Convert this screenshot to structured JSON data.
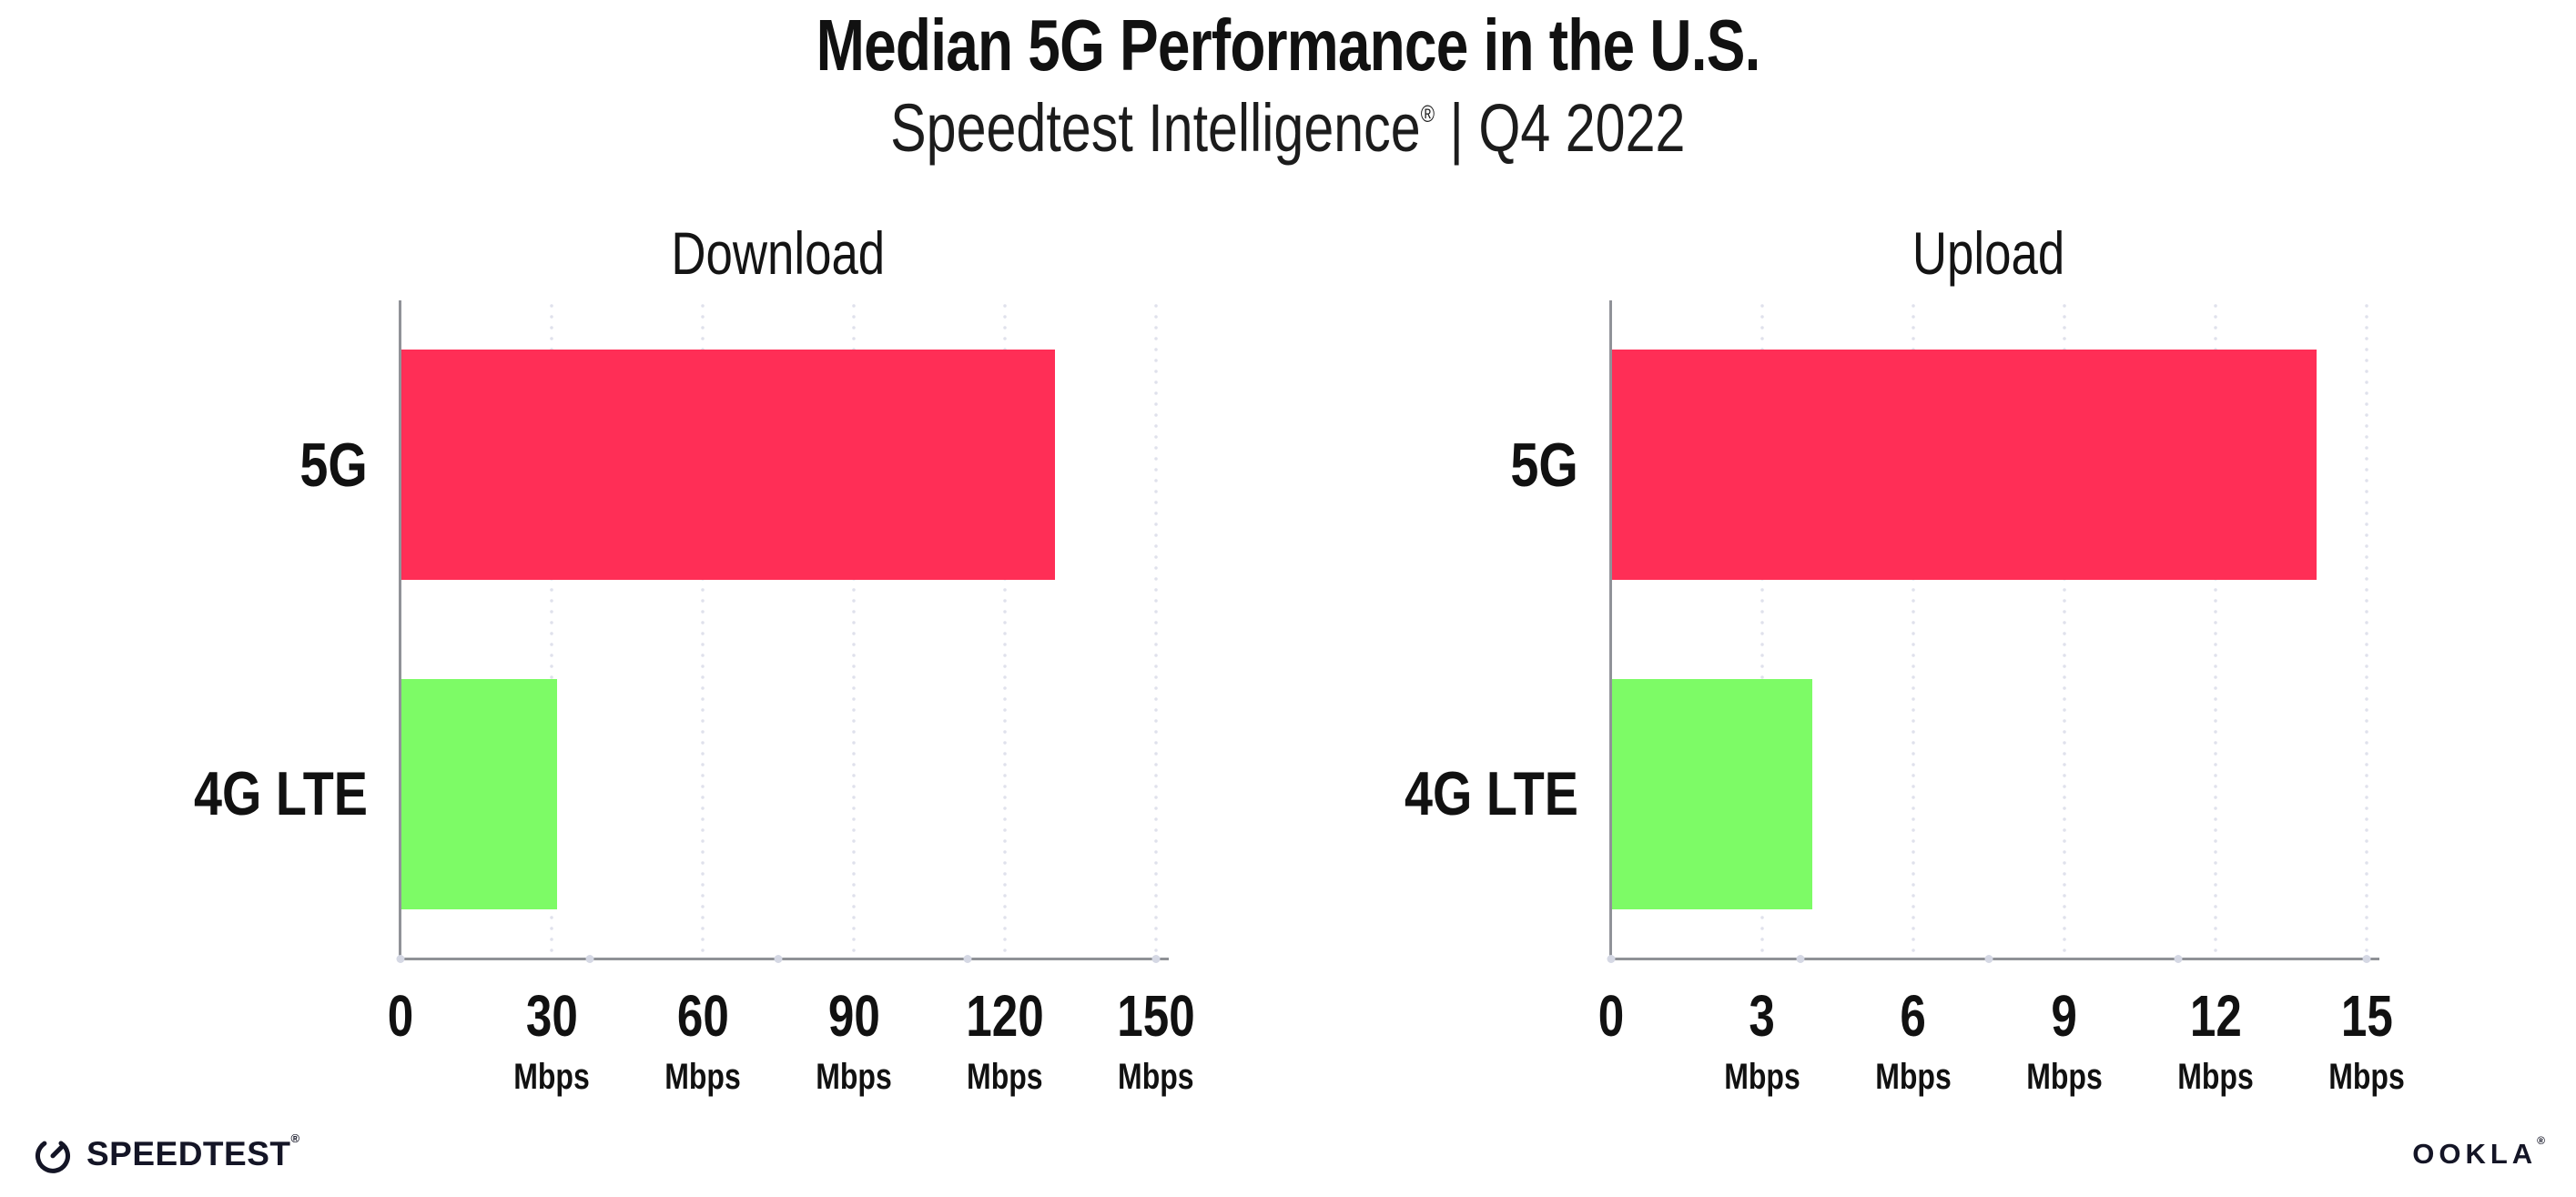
{
  "header": {
    "title": "Median 5G Performance in the U.S.",
    "subtitle_brand": "Speedtest Intelligence",
    "subtitle_reg": "®",
    "subtitle_rest": " | Q4 2022"
  },
  "colors": {
    "bar_5g": "#ff2e56",
    "bar_4g_lte": "#7dfb66",
    "axis_line": "#8f9196",
    "gridline_dot": "#dfe1ec",
    "text": "#111111",
    "logo_ink": "#141526"
  },
  "chart_data": [
    {
      "type": "bar",
      "orientation": "horizontal",
      "title": "Download",
      "categories": [
        "5G",
        "4G LTE"
      ],
      "values": [
        130,
        31
      ],
      "bar_colors": [
        "#ff2e56",
        "#7dfb66"
      ],
      "unit": "Mbps",
      "xlabel": "",
      "ylabel": "",
      "xlim": [
        0,
        150
      ],
      "xticks": [
        0,
        30,
        60,
        90,
        120,
        150
      ],
      "grid": "vertical-dotted",
      "legend": "none"
    },
    {
      "type": "bar",
      "orientation": "horizontal",
      "title": "Upload",
      "categories": [
        "5G",
        "4G LTE"
      ],
      "values": [
        14,
        4
      ],
      "bar_colors": [
        "#ff2e56",
        "#7dfb66"
      ],
      "unit": "Mbps",
      "xlabel": "",
      "ylabel": "",
      "xlim": [
        0,
        15
      ],
      "xticks": [
        0,
        3,
        6,
        9,
        12,
        15
      ],
      "grid": "vertical-dotted",
      "legend": "none"
    }
  ],
  "footer": {
    "speedtest_logo": "SPEEDTEST",
    "speedtest_reg": "®",
    "ookla_logo": "OOKLA",
    "ookla_reg": "®"
  }
}
